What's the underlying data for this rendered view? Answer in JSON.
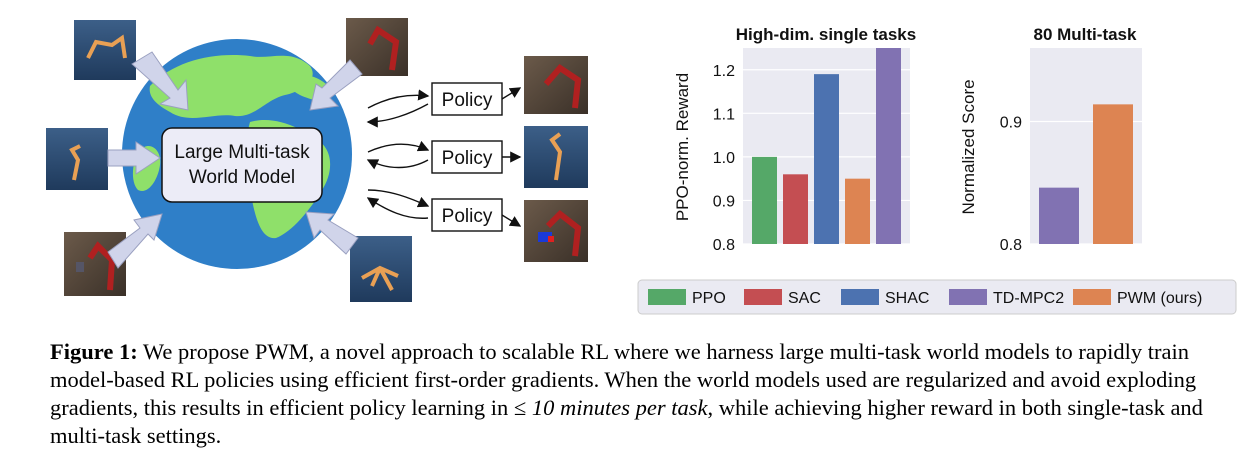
{
  "diagram": {
    "world_model_label": [
      "Large Multi-task",
      "World Model"
    ],
    "policy_labels": [
      "Policy",
      "Policy",
      "Policy"
    ],
    "icons": [
      "robot-arm-thumbnail",
      "ant-thumbnail",
      "hopper-thumbnail",
      "quadruped-thumbnail",
      "globe-icon"
    ]
  },
  "chart_data": [
    {
      "type": "bar",
      "title": "High-dim. single tasks",
      "ylabel": "PPO-norm. Reward",
      "xlabel": "",
      "categories": [
        "PPO",
        "SAC",
        "SHAC",
        "TD-MPC2",
        "PWM (ours)"
      ],
      "values": [
        1.0,
        0.96,
        1.19,
        1.25,
        0.95
      ],
      "bar_order": [
        "PPO",
        "SAC",
        "SHAC",
        "PWM (ours)",
        "TD-MPC2"
      ],
      "ylim": [
        0.8,
        1.25
      ],
      "yticks": [
        "0.8",
        "0.9",
        "1.0",
        "1.1",
        "1.2"
      ],
      "grid": true
    },
    {
      "type": "bar",
      "title": "80 Multi-task",
      "ylabel": "Normalized Score",
      "xlabel": "",
      "categories": [
        "TD-MPC2",
        "PWM (ours)"
      ],
      "values": [
        0.846,
        0.914
      ],
      "ylim": [
        0.8,
        0.96
      ],
      "yticks": [
        "0.8",
        "0.9"
      ],
      "grid": true
    }
  ],
  "legend": {
    "placement": "bottom",
    "entries": [
      {
        "label": "PPO",
        "color": "#55a868"
      },
      {
        "label": "SAC",
        "color": "#c44e52"
      },
      {
        "label": "SHAC",
        "color": "#4c72b0"
      },
      {
        "label": "TD-MPC2",
        "color": "#8172b2"
      },
      {
        "label": "PWM (ours)",
        "color": "#dd8452"
      }
    ]
  },
  "colors": {
    "PPO": "#55a868",
    "SAC": "#c44e52",
    "SHAC": "#4c72b0",
    "TD-MPC2": "#8172b2",
    "PWM (ours)": "#dd8452",
    "plot_bg": "#eaeaf2",
    "ocean": "#2f7fc8",
    "land": "#8fe06a"
  },
  "caption": {
    "label": "Figure 1:",
    "text_part1": " We propose PWM, a novel approach to scalable RL where we harness large multi-task world models to rapidly train model-based RL policies using efficient first-order gradients. When the world models used are regularized and avoid exploding gradients, this results in efficient policy learning in ",
    "leq": "≤",
    "em": " 10 minutes per task",
    "text_part2": ", while achieving higher reward in both single-task and multi-task settings."
  }
}
